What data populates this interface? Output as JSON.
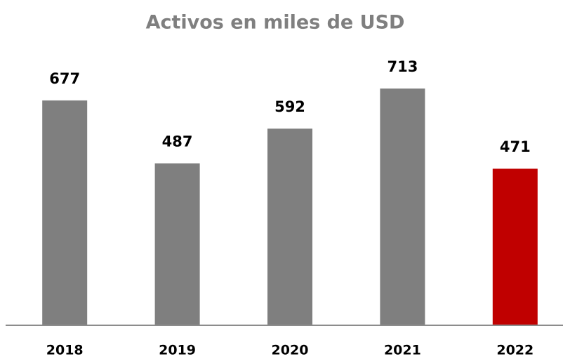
{
  "chart_data": {
    "type": "bar",
    "title": "Activos en miles de USD",
    "categories": [
      "2018",
      "2019",
      "2020",
      "2021",
      "2022"
    ],
    "values": [
      677,
      487,
      592,
      713,
      471
    ],
    "colors": [
      "#7f7f7f",
      "#7f7f7f",
      "#7f7f7f",
      "#7f7f7f",
      "#c00000"
    ]
  }
}
